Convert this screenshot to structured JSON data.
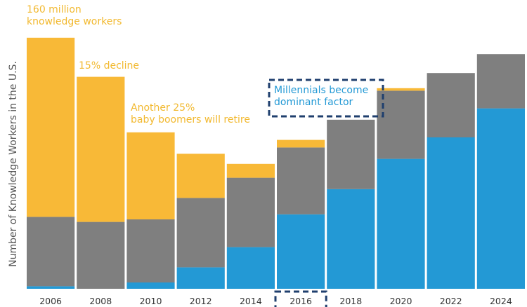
{
  "chart_data": {
    "type": "bar",
    "stacked": true,
    "title": "",
    "xlabel": "",
    "ylabel": "Number of Knowledge Workers in the U.S.",
    "categories": [
      "2006",
      "2008",
      "2010",
      "2012",
      "2014",
      "2016",
      "2018",
      "2020",
      "2022",
      "2024"
    ],
    "ylim": [
      0,
      100
    ],
    "grid": false,
    "legend": "none",
    "series": [
      {
        "color": "#2399d5",
        "values": [
          1,
          0,
          2.5,
          8.5,
          16.5,
          29.5,
          39.5,
          51.5,
          60,
          71.5
        ]
      },
      {
        "color": "#7f7f7f",
        "values": [
          27.5,
          26.5,
          25,
          27.5,
          27.5,
          26.5,
          27.5,
          27,
          25.5,
          21.5
        ]
      },
      {
        "color": "#f8b937",
        "values": [
          71,
          57.5,
          34.5,
          17.5,
          5.5,
          3,
          0,
          1,
          0,
          0
        ]
      }
    ],
    "annotations": [
      {
        "text": "160 million\nknowledge workers",
        "color": "#f2b930"
      },
      {
        "text": "15% decline",
        "color": "#f2b930"
      },
      {
        "text": "Another 25%\nbaby boomers will retire",
        "color": "#f2b930"
      },
      {
        "text": "Millennials become\ndominant factor",
        "color": "#2399d5",
        "boxed": true
      }
    ],
    "highlight": {
      "category": "2016",
      "style": "dashed-box",
      "color": "#1f3f6e"
    }
  }
}
